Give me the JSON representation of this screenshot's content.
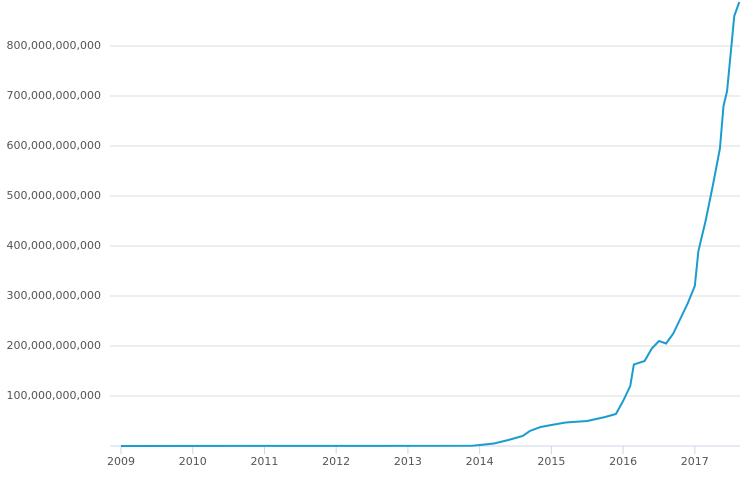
{
  "chart_data": {
    "type": "line",
    "x": [
      2009,
      2013.9,
      2014.0,
      2014.2,
      2014.4,
      2014.6,
      2014.7,
      2014.85,
      2015.0,
      2015.2,
      2015.5,
      2015.75,
      2015.9,
      2016.0,
      2016.1,
      2016.15,
      2016.3,
      2016.4,
      2016.5,
      2016.6,
      2016.7,
      2016.8,
      2016.9,
      2017.0,
      2017.05,
      2017.15,
      2017.25,
      2017.35,
      2017.4,
      2017.45,
      2017.55,
      2017.62
    ],
    "series": [
      {
        "color": "#1a9ccf",
        "values": [
          0,
          500000000,
          2000000000,
          5000000000,
          12000000000,
          20000000000,
          30000000000,
          38000000000,
          42000000000,
          47000000000,
          50000000000,
          58000000000,
          64000000000,
          90000000000,
          120000000000,
          163000000000,
          170000000000,
          195000000000,
          210000000000,
          205000000000,
          225000000000,
          255000000000,
          285000000000,
          320000000000,
          390000000000,
          450000000000,
          520000000000,
          595000000000,
          680000000000,
          710000000000,
          860000000000,
          888000000000
        ]
      }
    ],
    "xlim": [
      2009,
      2017.63
    ],
    "xticks": [
      2009,
      2010,
      2011,
      2012,
      2013,
      2014,
      2015,
      2016,
      2017
    ],
    "ylim": [
      0,
      892000000000
    ],
    "yticks": [
      {
        "value": 100000000000,
        "label": "100,000,000,000"
      },
      {
        "value": 200000000000,
        "label": "200,000,000,000"
      },
      {
        "value": 300000000000,
        "label": "300,000,000,000"
      },
      {
        "value": 400000000000,
        "label": "400,000,000,000"
      },
      {
        "value": 500000000000,
        "label": "500,000,000,000"
      },
      {
        "value": 600000000000,
        "label": "600,000,000,000"
      },
      {
        "value": 700000000000,
        "label": "700,000,000,000"
      },
      {
        "value": 800000000000,
        "label": "800,000,000,000"
      }
    ],
    "grid": true
  }
}
